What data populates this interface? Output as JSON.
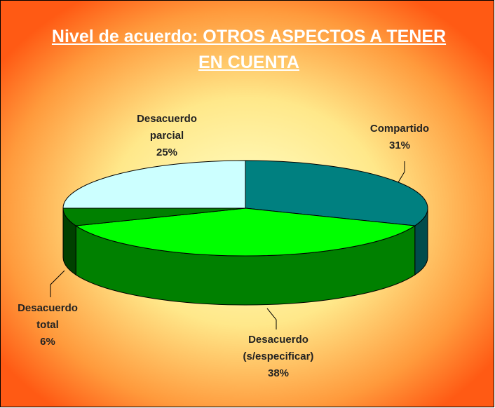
{
  "chart_data": {
    "type": "pie3d",
    "title": "Nivel de acuerdo: OTROS ASPECTOS A TENER EN CUENTA",
    "categories": [
      [
        "Compartido"
      ],
      [
        "Desacuerdo",
        "(s/especificar)"
      ],
      [
        "Desacuerdo",
        "total"
      ],
      [
        "Desacuerdo",
        "parcial"
      ]
    ],
    "values": [
      31,
      38,
      6,
      25
    ],
    "value_labels": [
      "31%",
      "38%",
      "6%",
      "25%"
    ],
    "colors": [
      "#008080",
      "#00ff00",
      "#008000",
      "#ccffff"
    ],
    "side_colors": [
      "#004c4c",
      "#008000",
      "#004000",
      "#7fa0a0"
    ]
  }
}
